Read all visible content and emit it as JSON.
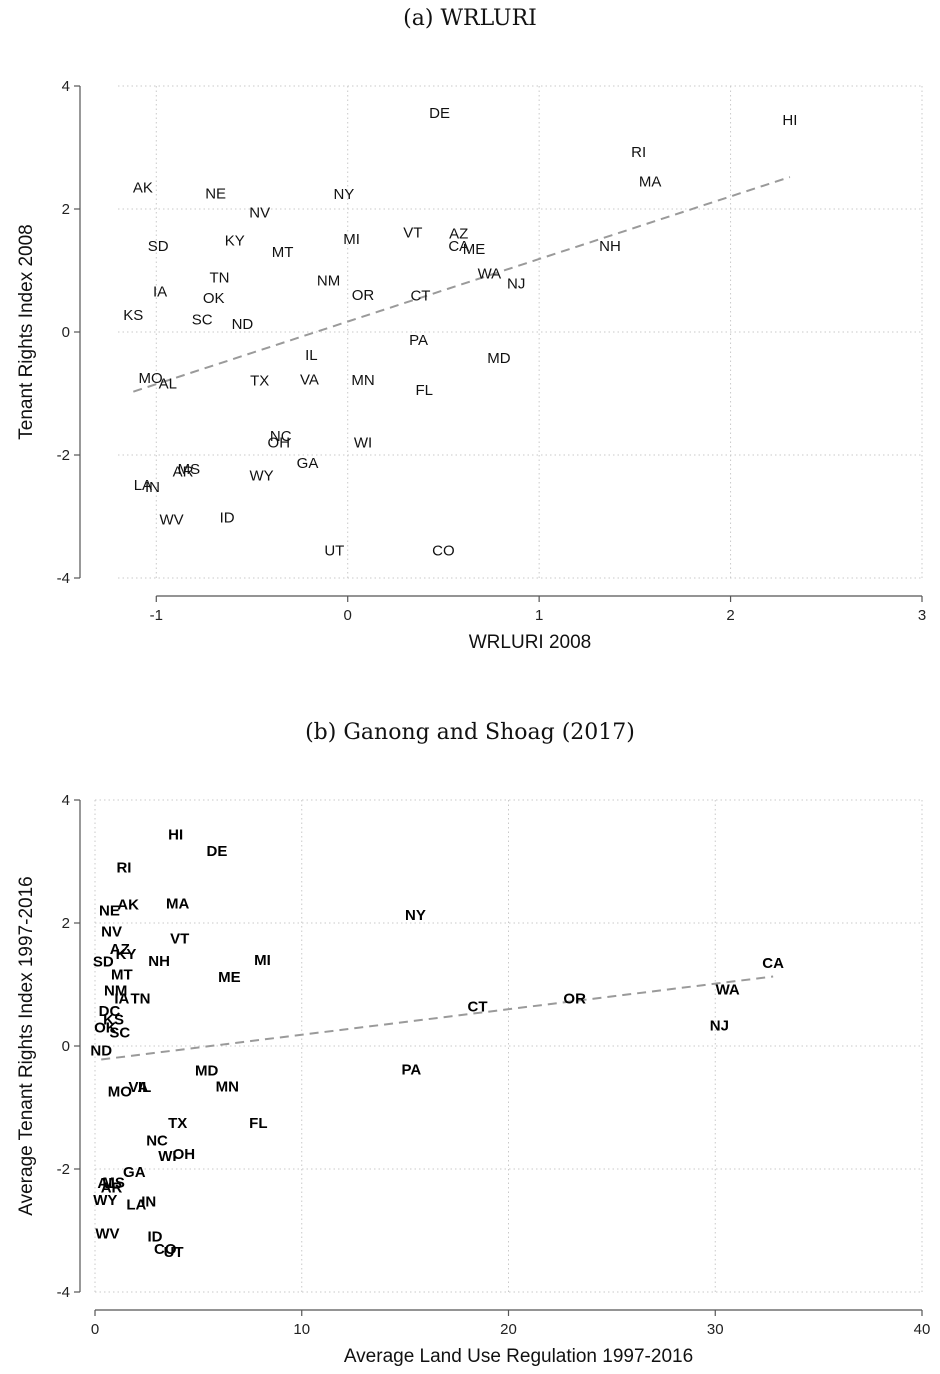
{
  "chart_data": [
    {
      "type": "scatter",
      "title": "(a) WRLURI",
      "xlabel": "WRLURI 2008",
      "ylabel": "Tenant Rights Index 2008",
      "xlim": [
        -1.2,
        3
      ],
      "ylim": [
        -4,
        4
      ],
      "xticks": [
        -1,
        0,
        1,
        2,
        3
      ],
      "yticks": [
        -4,
        -2,
        0,
        2,
        4
      ],
      "grid": true,
      "fit_line": {
        "x": [
          -1.12,
          2.31
        ],
        "y": [
          -0.97,
          2.52
        ],
        "style": "dashed"
      },
      "points": [
        {
          "label": "HI",
          "x": 2.31,
          "y": 3.45
        },
        {
          "label": "DE",
          "x": 0.48,
          "y": 3.56
        },
        {
          "label": "RI",
          "x": 1.52,
          "y": 2.93
        },
        {
          "label": "MA",
          "x": 1.58,
          "y": 2.45
        },
        {
          "label": "AK",
          "x": -1.07,
          "y": 2.35
        },
        {
          "label": "NE",
          "x": -0.69,
          "y": 2.25
        },
        {
          "label": "NY",
          "x": -0.02,
          "y": 2.24
        },
        {
          "label": "NV",
          "x": -0.46,
          "y": 1.94
        },
        {
          "label": "MI",
          "x": 0.02,
          "y": 1.51
        },
        {
          "label": "VT",
          "x": 0.34,
          "y": 1.62
        },
        {
          "label": "AZ",
          "x": 0.58,
          "y": 1.6
        },
        {
          "label": "CA",
          "x": 0.58,
          "y": 1.4
        },
        {
          "label": "ME",
          "x": 0.66,
          "y": 1.35
        },
        {
          "label": "KY",
          "x": -0.59,
          "y": 1.49
        },
        {
          "label": "SD",
          "x": -0.99,
          "y": 1.4
        },
        {
          "label": "MT",
          "x": -0.34,
          "y": 1.3
        },
        {
          "label": "NH",
          "x": 1.37,
          "y": 1.4
        },
        {
          "label": "TN",
          "x": -0.67,
          "y": 0.89
        },
        {
          "label": "NM",
          "x": -0.1,
          "y": 0.84
        },
        {
          "label": "WA",
          "x": 0.74,
          "y": 0.95
        },
        {
          "label": "NJ",
          "x": 0.88,
          "y": 0.79
        },
        {
          "label": "IA",
          "x": -0.98,
          "y": 0.66
        },
        {
          "label": "OK",
          "x": -0.7,
          "y": 0.55
        },
        {
          "label": "OR",
          "x": 0.08,
          "y": 0.6
        },
        {
          "label": "CT",
          "x": 0.38,
          "y": 0.59
        },
        {
          "label": "KS",
          "x": -1.12,
          "y": 0.28
        },
        {
          "label": "SC",
          "x": -0.76,
          "y": 0.2
        },
        {
          "label": "ND",
          "x": -0.55,
          "y": 0.13
        },
        {
          "label": "PA",
          "x": 0.37,
          "y": -0.13
        },
        {
          "label": "IL",
          "x": -0.19,
          "y": -0.37
        },
        {
          "label": "MD",
          "x": 0.79,
          "y": -0.42
        },
        {
          "label": "MO",
          "x": -1.03,
          "y": -0.75
        },
        {
          "label": "AL",
          "x": -0.94,
          "y": -0.84
        },
        {
          "label": "TX",
          "x": -0.46,
          "y": -0.79
        },
        {
          "label": "VA",
          "x": -0.2,
          "y": -0.77
        },
        {
          "label": "MN",
          "x": 0.08,
          "y": -0.78
        },
        {
          "label": "FL",
          "x": 0.4,
          "y": -0.94
        },
        {
          "label": "NC",
          "x": -0.35,
          "y": -1.69
        },
        {
          "label": "OH",
          "x": -0.36,
          "y": -1.8
        },
        {
          "label": "WI",
          "x": 0.08,
          "y": -1.8
        },
        {
          "label": "GA",
          "x": -0.21,
          "y": -2.13
        },
        {
          "label": "MS",
          "x": -0.83,
          "y": -2.23
        },
        {
          "label": "AR",
          "x": -0.86,
          "y": -2.27
        },
        {
          "label": "WY",
          "x": -0.45,
          "y": -2.33
        },
        {
          "label": "LA",
          "x": -1.07,
          "y": -2.49
        },
        {
          "label": "IN",
          "x": -1.02,
          "y": -2.52
        },
        {
          "label": "WV",
          "x": -0.92,
          "y": -3.05
        },
        {
          "label": "ID",
          "x": -0.63,
          "y": -3.02
        },
        {
          "label": "UT",
          "x": -0.07,
          "y": -3.55
        },
        {
          "label": "CO",
          "x": 0.5,
          "y": -3.55
        }
      ]
    },
    {
      "type": "scatter",
      "title": "(b) Ganong and Shoag (2017)",
      "xlabel": "Average Land Use Regulation 1997-2016",
      "ylabel": "Average Tenant Rights Index 1997-2016",
      "xlim": [
        0,
        40
      ],
      "ylim": [
        -4,
        4
      ],
      "xticks": [
        0,
        10,
        20,
        30,
        40
      ],
      "yticks": [
        -4,
        -2,
        0,
        2,
        4
      ],
      "grid": true,
      "fit_line": {
        "x": [
          0.3,
          32.8
        ],
        "y": [
          -0.22,
          1.13
        ],
        "style": "dashed"
      },
      "points": [
        {
          "label": "HI",
          "x": 3.9,
          "y": 3.44
        },
        {
          "label": "DE",
          "x": 5.9,
          "y": 3.17
        },
        {
          "label": "RI",
          "x": 1.4,
          "y": 2.9
        },
        {
          "label": "AK",
          "x": 1.6,
          "y": 2.3
        },
        {
          "label": "MA",
          "x": 4.0,
          "y": 2.32
        },
        {
          "label": "NE",
          "x": 0.7,
          "y": 2.2
        },
        {
          "label": "NY",
          "x": 15.5,
          "y": 2.13
        },
        {
          "label": "NV",
          "x": 0.8,
          "y": 1.86
        },
        {
          "label": "VT",
          "x": 4.1,
          "y": 1.75
        },
        {
          "label": "AZ",
          "x": 1.2,
          "y": 1.58
        },
        {
          "label": "KY",
          "x": 1.5,
          "y": 1.5
        },
        {
          "label": "SD",
          "x": 0.4,
          "y": 1.37
        },
        {
          "label": "NH",
          "x": 3.1,
          "y": 1.38
        },
        {
          "label": "MI",
          "x": 8.1,
          "y": 1.4
        },
        {
          "label": "MT",
          "x": 1.3,
          "y": 1.16
        },
        {
          "label": "ME",
          "x": 6.5,
          "y": 1.12
        },
        {
          "label": "NM",
          "x": 1.0,
          "y": 0.9
        },
        {
          "label": "IA",
          "x": 1.3,
          "y": 0.77
        },
        {
          "label": "TN",
          "x": 2.2,
          "y": 0.77
        },
        {
          "label": "DC",
          "x": 0.7,
          "y": 0.57
        },
        {
          "label": "KS",
          "x": 0.9,
          "y": 0.43
        },
        {
          "label": "OK",
          "x": 0.5,
          "y": 0.3
        },
        {
          "label": "SC",
          "x": 1.2,
          "y": 0.22
        },
        {
          "label": "ND",
          "x": 0.3,
          "y": -0.07
        },
        {
          "label": "CT",
          "x": 18.5,
          "y": 0.64
        },
        {
          "label": "OR",
          "x": 23.2,
          "y": 0.77
        },
        {
          "label": "WA",
          "x": 30.6,
          "y": 0.92
        },
        {
          "label": "CA",
          "x": 32.8,
          "y": 1.35
        },
        {
          "label": "NJ",
          "x": 30.2,
          "y": 0.33
        },
        {
          "label": "PA",
          "x": 15.3,
          "y": -0.38
        },
        {
          "label": "MD",
          "x": 5.4,
          "y": -0.4
        },
        {
          "label": "MN",
          "x": 6.4,
          "y": -0.66
        },
        {
          "label": "VA",
          "x": 2.1,
          "y": -0.67
        },
        {
          "label": "IL",
          "x": 2.4,
          "y": -0.67
        },
        {
          "label": "MO",
          "x": 1.2,
          "y": -0.74
        },
        {
          "label": "TX",
          "x": 4.0,
          "y": -1.25
        },
        {
          "label": "FL",
          "x": 7.9,
          "y": -1.25
        },
        {
          "label": "NC",
          "x": 3.0,
          "y": -1.54
        },
        {
          "label": "WI",
          "x": 3.5,
          "y": -1.79
        },
        {
          "label": "OH",
          "x": 4.3,
          "y": -1.76
        },
        {
          "label": "GA",
          "x": 1.9,
          "y": -2.05
        },
        {
          "label": "AL",
          "x": 0.6,
          "y": -2.23
        },
        {
          "label": "MS",
          "x": 0.9,
          "y": -2.22
        },
        {
          "label": "AR",
          "x": 0.8,
          "y": -2.3
        },
        {
          "label": "WY",
          "x": 0.5,
          "y": -2.5
        },
        {
          "label": "LA",
          "x": 2.0,
          "y": -2.58
        },
        {
          "label": "IN",
          "x": 2.6,
          "y": -2.53
        },
        {
          "label": "WV",
          "x": 0.6,
          "y": -3.05
        },
        {
          "label": "ID",
          "x": 2.9,
          "y": -3.1
        },
        {
          "label": "CO",
          "x": 3.4,
          "y": -3.3
        },
        {
          "label": "UT",
          "x": 3.8,
          "y": -3.35
        }
      ]
    }
  ]
}
